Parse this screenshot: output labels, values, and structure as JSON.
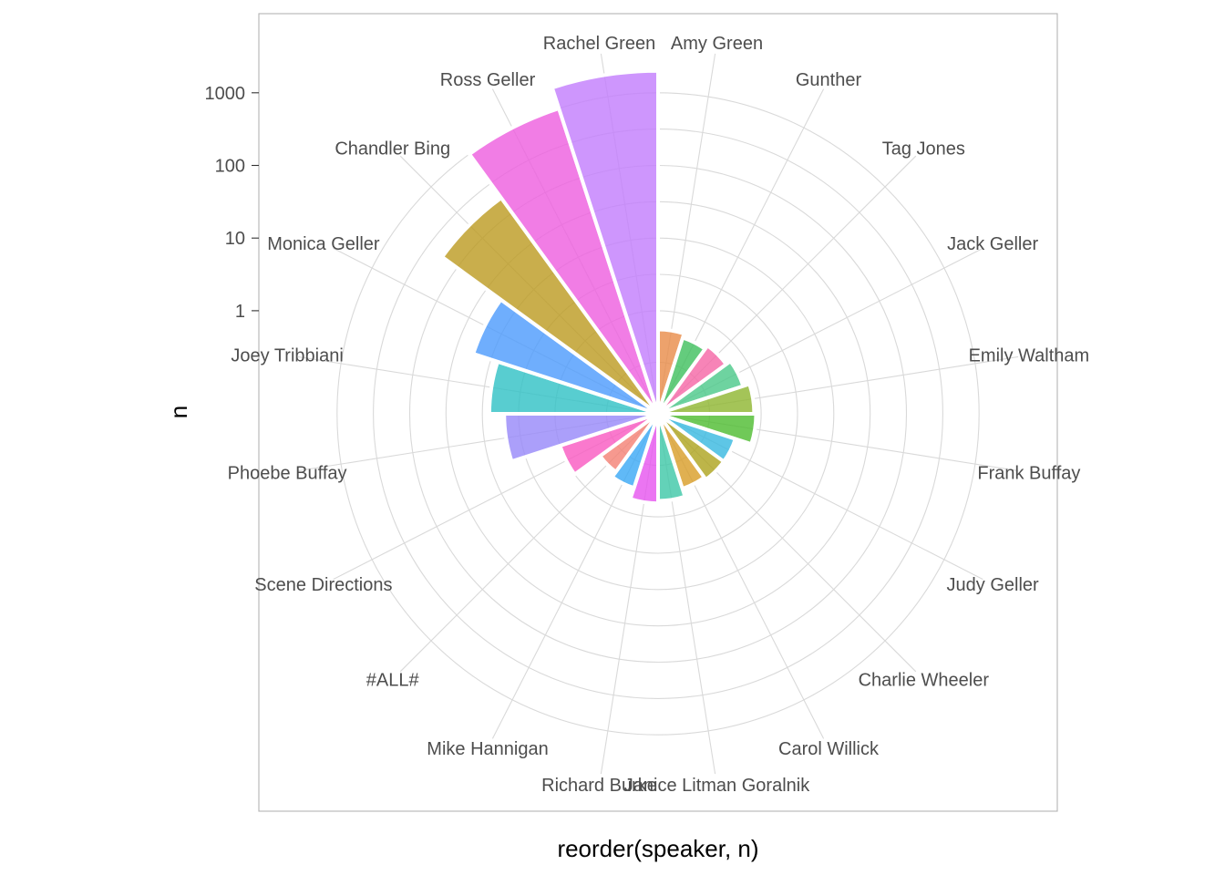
{
  "chart_data": {
    "type": "bar",
    "coord": "polar",
    "xlabel": "reorder(speaker, n)",
    "ylabel": "n",
    "y_scale": "log10",
    "y_ticks": [
      {
        "value": 1,
        "label": "1"
      },
      {
        "value": 10,
        "label": "10"
      },
      {
        "value": 100,
        "label": "100"
      },
      {
        "value": 1000,
        "label": "1000"
      }
    ],
    "categories": [
      "Amy Green",
      "Gunther",
      "Tag Jones",
      "Jack Geller",
      "Emily Waltham",
      "Frank Buffay",
      "Judy Geller",
      "Charlie Wheeler",
      "Carol Willick",
      "Janice Litman Goralnik",
      "Richard Burke",
      "Mike Hannigan",
      "#ALL#",
      "Scene Directions",
      "Phoebe Buffay",
      "Joey Tribbiani",
      "Monica Geller",
      "Chandler Bing",
      "Ross Geller",
      "Rachel Green"
    ],
    "values": [
      0.55,
      0.48,
      0.55,
      0.65,
      0.8,
      0.85,
      0.5,
      0.5,
      0.46,
      0.6,
      0.65,
      0.45,
      0.37,
      1.0,
      5.0,
      8.0,
      18.0,
      180.0,
      1000.0,
      2000.0
    ],
    "colors": [
      "#E88B47",
      "#3DBF5C",
      "#F565A5",
      "#4AC888",
      "#8DB52E",
      "#4CBB2E",
      "#36B8E0",
      "#ADA31B",
      "#D89C26",
      "#3CC7A6",
      "#E652EF",
      "#38A8F5",
      "#F47F73",
      "#F957C1",
      "#9687F9",
      "#2EC0C4",
      "#4B9AFD",
      "#BB9A1F",
      "#EE5CDE",
      "#C27CFD"
    ],
    "grid": true,
    "legend": "none"
  }
}
